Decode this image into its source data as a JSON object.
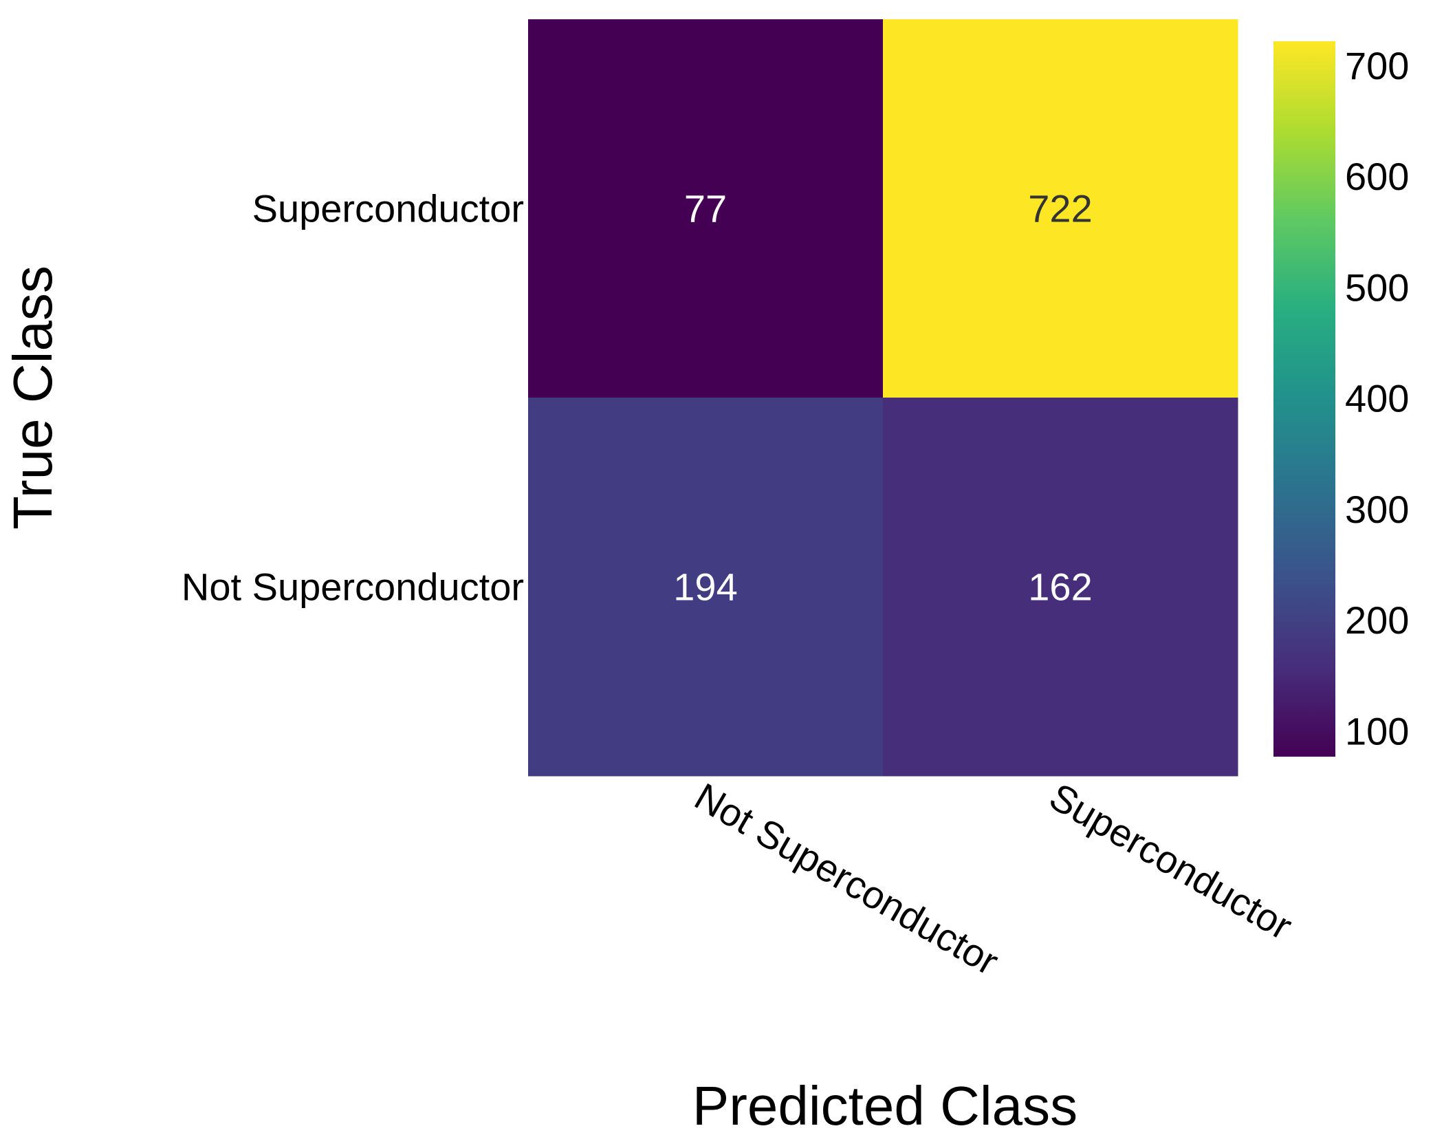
{
  "chart_data": {
    "type": "heatmap",
    "title": "",
    "xlabel": "Predicted Class",
    "ylabel": "True Class",
    "x_categories": [
      "Not Superconductor",
      "Superconductor"
    ],
    "y_categories": [
      "Superconductor",
      "Not Superconductor"
    ],
    "values": [
      [
        77,
        722
      ],
      [
        194,
        162
      ]
    ],
    "colormap": "viridis",
    "colorbar": {
      "range": [
        77,
        722
      ],
      "ticks": [
        100,
        200,
        300,
        400,
        500,
        600,
        700
      ],
      "tick_labels": [
        "100",
        "200",
        "300",
        "400",
        "500",
        "600",
        "700"
      ]
    },
    "label_colors": {
      "dark_text": "#333333",
      "light_text": "#ffffff"
    },
    "grid": false,
    "legend": "colorbar-right"
  }
}
